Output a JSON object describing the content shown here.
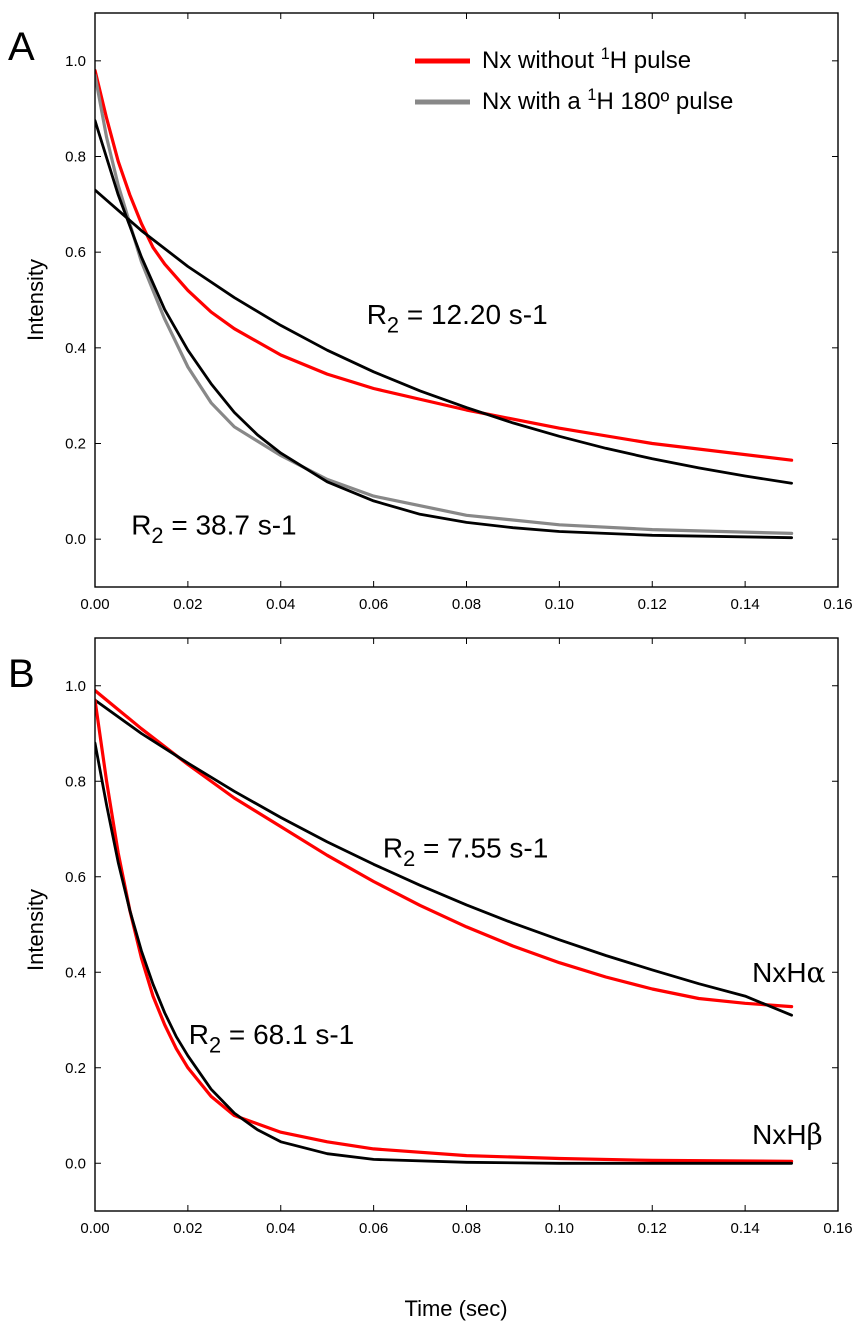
{
  "figure": {
    "background": "#ffffff"
  },
  "chart_data": [
    {
      "panel": "A",
      "type": "line",
      "xlabel": "",
      "ylabel": "Intensity",
      "xlim": [
        0,
        0.16
      ],
      "ylim": [
        -0.1,
        1.1
      ],
      "xticks": [
        "0.00",
        "0.02",
        "0.04",
        "0.06",
        "0.08",
        "0.10",
        "0.12",
        "0.14",
        "0.16"
      ],
      "yticks": [
        "0.0",
        "0.2",
        "0.4",
        "0.6",
        "0.8",
        "1.0"
      ],
      "grid": false,
      "legend_position": "top-right",
      "legend": [
        {
          "name": "Nx without ¹H pulse",
          "prefix": "Nx without ",
          "sup": "1",
          "suffix": "H pulse",
          "color": "#ff0000"
        },
        {
          "name": "Nx with a ¹H 180° pulse",
          "prefix": "Nx with a ",
          "sup": "1",
          "suffix": "H 180º pulse",
          "color": "#888888"
        }
      ],
      "series": [
        {
          "name": "Nx without ¹H pulse",
          "color": "#ff0000",
          "x": [
            0,
            0.0025,
            0.005,
            0.0075,
            0.01,
            0.0125,
            0.015,
            0.02,
            0.025,
            0.03,
            0.04,
            0.05,
            0.06,
            0.08,
            0.1,
            0.12,
            0.15
          ],
          "y": [
            0.98,
            0.88,
            0.79,
            0.72,
            0.66,
            0.61,
            0.575,
            0.52,
            0.475,
            0.44,
            0.385,
            0.345,
            0.315,
            0.27,
            0.232,
            0.2,
            0.165
          ]
        },
        {
          "name": "Nx with a ¹H 180° pulse",
          "color": "#888888",
          "x": [
            0,
            0.0025,
            0.005,
            0.0075,
            0.01,
            0.0125,
            0.015,
            0.02,
            0.025,
            0.03,
            0.04,
            0.05,
            0.06,
            0.08,
            0.1,
            0.12,
            0.15
          ],
          "y": [
            0.97,
            0.84,
            0.74,
            0.66,
            0.58,
            0.52,
            0.46,
            0.36,
            0.285,
            0.235,
            0.175,
            0.125,
            0.09,
            0.05,
            0.03,
            0.02,
            0.012
          ]
        },
        {
          "name": "",
          "color": "#000000",
          "x": [
            0,
            0.01,
            0.02,
            0.03,
            0.04,
            0.05,
            0.06,
            0.07,
            0.08,
            0.09,
            0.1,
            0.11,
            0.12,
            0.13,
            0.14,
            0.15
          ],
          "y": [
            0.73,
            0.645,
            0.57,
            0.505,
            0.447,
            0.395,
            0.35,
            0.31,
            0.275,
            0.243,
            0.215,
            0.19,
            0.168,
            0.149,
            0.132,
            0.117
          ]
        },
        {
          "name": "",
          "color": "#000000",
          "x": [
            0,
            0.005,
            0.01,
            0.015,
            0.02,
            0.025,
            0.03,
            0.035,
            0.04,
            0.05,
            0.06,
            0.07,
            0.08,
            0.09,
            0.1,
            0.12,
            0.15
          ],
          "y": [
            0.875,
            0.72,
            0.59,
            0.48,
            0.395,
            0.325,
            0.265,
            0.218,
            0.18,
            0.12,
            0.08,
            0.052,
            0.035,
            0.024,
            0.016,
            0.008,
            0.003
          ]
        }
      ],
      "annotations": [
        {
          "prefix": "R",
          "sub": "2",
          "suffix": " = 12.20 s-1",
          "x": 0.0585,
          "y": 0.45
        },
        {
          "prefix": "R",
          "sub": "2",
          "suffix": " = 38.7 s-1",
          "x": 0.0078,
          "y": 0.01
        }
      ]
    },
    {
      "panel": "B",
      "type": "line",
      "xlabel": "Time (sec)",
      "ylabel": "Intensity",
      "xlim": [
        0,
        0.16
      ],
      "ylim": [
        -0.1,
        1.1
      ],
      "xticks": [
        "0.00",
        "0.02",
        "0.04",
        "0.06",
        "0.08",
        "0.10",
        "0.12",
        "0.14",
        "0.16"
      ],
      "yticks": [
        "0.0",
        "0.2",
        "0.4",
        "0.6",
        "0.8",
        "1.0"
      ],
      "grid": false,
      "legend": [],
      "series": [
        {
          "name": "NxHα",
          "color": "#ff0000",
          "x": [
            0,
            0.005,
            0.01,
            0.02,
            0.03,
            0.04,
            0.05,
            0.06,
            0.07,
            0.08,
            0.09,
            0.1,
            0.11,
            0.12,
            0.13,
            0.14,
            0.15
          ],
          "y": [
            0.99,
            0.95,
            0.91,
            0.835,
            0.765,
            0.705,
            0.645,
            0.59,
            0.54,
            0.495,
            0.455,
            0.42,
            0.39,
            0.365,
            0.345,
            0.335,
            0.328
          ]
        },
        {
          "name": "",
          "color": "#000000",
          "x": [
            0,
            0.01,
            0.02,
            0.03,
            0.04,
            0.05,
            0.06,
            0.07,
            0.08,
            0.09,
            0.1,
            0.11,
            0.12,
            0.13,
            0.14,
            0.15
          ],
          "y": [
            0.97,
            0.9,
            0.838,
            0.779,
            0.724,
            0.673,
            0.626,
            0.582,
            0.541,
            0.503,
            0.468,
            0.435,
            0.405,
            0.376,
            0.35,
            0.31
          ]
        },
        {
          "name": "NxHβ",
          "color": "#ff0000",
          "x": [
            0,
            0.0025,
            0.005,
            0.0075,
            0.01,
            0.0125,
            0.015,
            0.0175,
            0.02,
            0.025,
            0.03,
            0.04,
            0.05,
            0.06,
            0.08,
            0.1,
            0.12,
            0.15
          ],
          "y": [
            0.97,
            0.8,
            0.65,
            0.53,
            0.43,
            0.35,
            0.29,
            0.24,
            0.2,
            0.14,
            0.1,
            0.065,
            0.045,
            0.03,
            0.016,
            0.01,
            0.006,
            0.004
          ]
        },
        {
          "name": "",
          "color": "#000000",
          "x": [
            0,
            0.0025,
            0.005,
            0.0075,
            0.01,
            0.0125,
            0.015,
            0.0175,
            0.02,
            0.025,
            0.03,
            0.035,
            0.04,
            0.05,
            0.06,
            0.08,
            0.1,
            0.15
          ],
          "y": [
            0.88,
            0.75,
            0.63,
            0.53,
            0.445,
            0.375,
            0.315,
            0.265,
            0.225,
            0.155,
            0.105,
            0.07,
            0.045,
            0.02,
            0.008,
            0.002,
            0.0,
            0.0
          ]
        }
      ],
      "annotations": [
        {
          "prefix": "R",
          "sub": "2",
          "suffix": " = 7.55 s-1",
          "x": 0.062,
          "y": 0.64
        },
        {
          "prefix": "R",
          "sub": "2",
          "suffix": " = 68.1 s-1",
          "x": 0.0202,
          "y": 0.25
        },
        {
          "prefix": "NxH",
          "greek": "α",
          "x": 0.1415,
          "y": 0.38
        },
        {
          "prefix": "NxH",
          "greek": "β",
          "x": 0.1415,
          "y": 0.04
        }
      ]
    }
  ]
}
